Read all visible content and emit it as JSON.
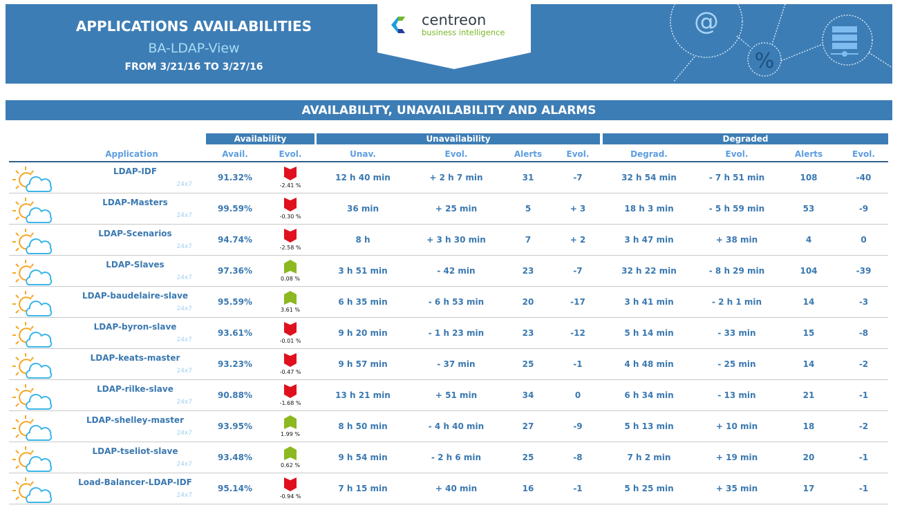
{
  "header": {
    "title": "APPLICATIONS AVAILABILITIES",
    "subtitle": "BA-LDAP-View",
    "period": "FROM 3/21/16 TO 3/27/16",
    "logo_text": "centreon",
    "logo_subtext": "business intelligence"
  },
  "section_title": "AVAILABILITY, UNAVAILABILITY AND ALARMS",
  "groups": {
    "availability": "Availability",
    "unavailability": "Unavailability",
    "degraded": "Degraded"
  },
  "columns": [
    "Application",
    "Avail.",
    "Evol.",
    "Unav.",
    "Evol.",
    "Alerts",
    "Evol.",
    "Degrad.",
    "Evol.",
    "Alerts",
    "Evol."
  ],
  "colors": {
    "banner": "#3d7db5",
    "up": "#8cb820",
    "down": "#e0101e",
    "text": "#3a78b0"
  },
  "rows": [
    {
      "app": "LDAP-IDF",
      "schedule": "24x7",
      "avail": "91.32%",
      "avail_evol": "-2.41 %",
      "trend": "down",
      "unav": "12 h 40 min",
      "unav_evol": "+ 2 h 7 min",
      "alerts": "31",
      "alerts_evol": "-7",
      "degrad": "32 h 54 min",
      "degrad_evol": "- 7 h 51 min",
      "d_alerts": "108",
      "d_alerts_evol": "-40"
    },
    {
      "app": "LDAP-Masters",
      "schedule": "24x7",
      "avail": "99.59%",
      "avail_evol": "-0.30 %",
      "trend": "down",
      "unav": "36 min",
      "unav_evol": "+ 25 min",
      "alerts": "5",
      "alerts_evol": "+ 3",
      "degrad": "18 h 3 min",
      "degrad_evol": "- 5 h 59 min",
      "d_alerts": "53",
      "d_alerts_evol": "-9"
    },
    {
      "app": "LDAP-Scenarios",
      "schedule": "24x7",
      "avail": "94.74%",
      "avail_evol": "-2.58 %",
      "trend": "down",
      "unav": "8 h",
      "unav_evol": "+ 3 h 30 min",
      "alerts": "7",
      "alerts_evol": "+ 2",
      "degrad": "3 h 47 min",
      "degrad_evol": "+ 38 min",
      "d_alerts": "4",
      "d_alerts_evol": "0"
    },
    {
      "app": "LDAP-Slaves",
      "schedule": "24x7",
      "avail": "97.36%",
      "avail_evol": "0.08 %",
      "trend": "up",
      "unav": "3 h 51 min",
      "unav_evol": "- 42 min",
      "alerts": "23",
      "alerts_evol": "-7",
      "degrad": "32 h 22 min",
      "degrad_evol": "- 8 h 29 min",
      "d_alerts": "104",
      "d_alerts_evol": "-39"
    },
    {
      "app": "LDAP-baudelaire-slave",
      "schedule": "24x7",
      "avail": "95.59%",
      "avail_evol": "3.61 %",
      "trend": "up",
      "unav": "6 h 35 min",
      "unav_evol": "- 6 h 53 min",
      "alerts": "20",
      "alerts_evol": "-17",
      "degrad": "3 h 41 min",
      "degrad_evol": "- 2 h 1 min",
      "d_alerts": "14",
      "d_alerts_evol": "-3"
    },
    {
      "app": "LDAP-byron-slave",
      "schedule": "24x7",
      "avail": "93.61%",
      "avail_evol": "-0.01 %",
      "trend": "down",
      "unav": "9 h 20 min",
      "unav_evol": "- 1 h 23 min",
      "alerts": "23",
      "alerts_evol": "-12",
      "degrad": "5 h 14 min",
      "degrad_evol": "- 33 min",
      "d_alerts": "15",
      "d_alerts_evol": "-8"
    },
    {
      "app": "LDAP-keats-master",
      "schedule": "24x7",
      "avail": "93.23%",
      "avail_evol": "-0.47 %",
      "trend": "down",
      "unav": "9 h 57 min",
      "unav_evol": "- 37 min",
      "alerts": "25",
      "alerts_evol": "-1",
      "degrad": "4 h 48 min",
      "degrad_evol": "- 25 min",
      "d_alerts": "14",
      "d_alerts_evol": "-2"
    },
    {
      "app": "LDAP-rilke-slave",
      "schedule": "24x7",
      "avail": "90.88%",
      "avail_evol": "-1.68 %",
      "trend": "down",
      "unav": "13 h 21 min",
      "unav_evol": "+ 51 min",
      "alerts": "34",
      "alerts_evol": "0",
      "degrad": "6 h 34 min",
      "degrad_evol": "- 13 min",
      "d_alerts": "21",
      "d_alerts_evol": "-1"
    },
    {
      "app": "LDAP-shelley-master",
      "schedule": "24x7",
      "avail": "93.95%",
      "avail_evol": "1.99 %",
      "trend": "up",
      "unav": "8 h 50 min",
      "unav_evol": "- 4 h 40 min",
      "alerts": "27",
      "alerts_evol": "-9",
      "degrad": "5 h 13 min",
      "degrad_evol": "+ 10 min",
      "d_alerts": "18",
      "d_alerts_evol": "-2"
    },
    {
      "app": "LDAP-tseliot-slave",
      "schedule": "24x7",
      "avail": "93.48%",
      "avail_evol": "0.62 %",
      "trend": "up",
      "unav": "9 h 54 min",
      "unav_evol": "- 2 h 6 min",
      "alerts": "25",
      "alerts_evol": "-8",
      "degrad": "7 h 2 min",
      "degrad_evol": "+ 19 min",
      "d_alerts": "20",
      "d_alerts_evol": "-1"
    },
    {
      "app": "Load-Balancer-LDAP-IDF",
      "schedule": "24x7",
      "avail": "95.14%",
      "avail_evol": "-0.94 %",
      "trend": "down",
      "unav": "7 h 15 min",
      "unav_evol": "+ 40 min",
      "alerts": "16",
      "alerts_evol": "-1",
      "degrad": "5 h 25 min",
      "degrad_evol": "+ 35 min",
      "d_alerts": "17",
      "d_alerts_evol": "-1"
    }
  ]
}
